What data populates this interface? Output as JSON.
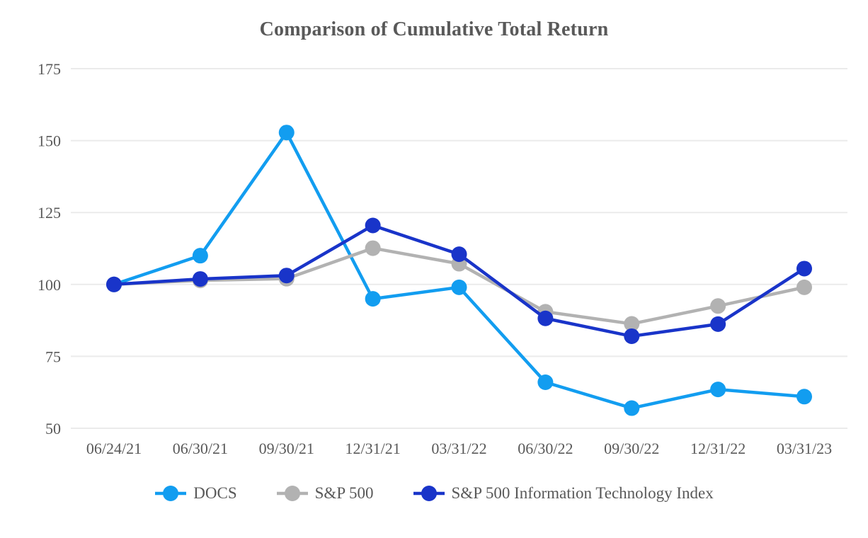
{
  "page": {
    "background_color": "#FFFFFF",
    "text_color": "#595959",
    "gridline_color": "#EBEBEB"
  },
  "chart_data": {
    "type": "line",
    "title": "Comparison of Cumulative Total Return",
    "xlabel": "",
    "ylabel": "",
    "categories": [
      "06/24/21",
      "06/30/21",
      "09/30/21",
      "12/31/21",
      "03/31/22",
      "06/30/22",
      "09/30/22",
      "12/31/22",
      "03/31/23"
    ],
    "series": [
      {
        "name": "DOCS",
        "color": "#129DF0",
        "values": [
          100,
          110,
          152.8,
          95,
          99,
          66,
          57,
          63.5,
          61
        ]
      },
      {
        "name": "S&P 500",
        "color": "#B2B2B2",
        "values": [
          100,
          101.4,
          102,
          112.6,
          107.2,
          90.5,
          86.3,
          92.5,
          99
        ]
      },
      {
        "name": "S&P 500 Information Technology Index",
        "color": "#1934C9",
        "values": [
          100,
          101.9,
          103.1,
          120.5,
          110.5,
          88.2,
          82,
          86.2,
          105.5
        ]
      }
    ],
    "y_axis": {
      "min": 50,
      "max": 175,
      "step": 25,
      "ticks": [
        175,
        150,
        125,
        100,
        75,
        50
      ]
    },
    "grid": true,
    "legend_position": "bottom",
    "marker": "circle"
  }
}
